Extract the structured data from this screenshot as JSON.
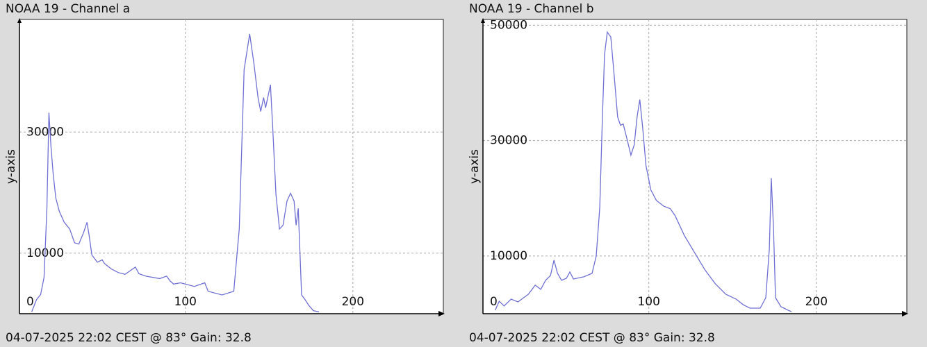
{
  "chart_data": [
    {
      "type": "line",
      "title": "NOAA 19 - Channel a",
      "ylabel": "y-axis",
      "footer": "04-07-2025 22:02 CEST @ 83° Gain: 32.8",
      "xlim": [
        1,
        254
      ],
      "ylim": [
        0,
        48600
      ],
      "xticks": [
        100,
        200
      ],
      "yticks": [
        0,
        10000,
        30000
      ],
      "grid": true,
      "x": [
        8.3,
        11.2,
        13.6,
        15.7,
        17.4,
        18.6,
        19.8,
        21.1,
        22.7,
        24.8,
        27.7,
        31,
        33.9,
        36.4,
        39.3,
        41.3,
        42.6,
        44.2,
        47.5,
        50.4,
        51.7,
        55.8,
        59.9,
        64,
        70.2,
        72.3,
        76.4,
        84.7,
        88.8,
        90.9,
        93,
        97.1,
        105.4,
        111.6,
        113.6,
        121.9,
        128.9,
        132.2,
        135.1,
        138.4,
        140.9,
        143.4,
        145,
        146.7,
        147.9,
        149.2,
        150.8,
        152.1,
        154.1,
        156.2,
        158.3,
        160.7,
        162.8,
        164.9,
        166.1,
        167.4,
        169.4,
        171.5,
        173.6,
        176.4,
        179.8
      ],
      "series": [
        {
          "color": "#7070d4",
          "values": [
            300,
            2340,
            3140,
            6000,
            17430,
            33200,
            27700,
            23100,
            19100,
            16900,
            15100,
            14000,
            11700,
            11500,
            13400,
            15100,
            12900,
            9700,
            8500,
            8900,
            8300,
            7400,
            6800,
            6500,
            7700,
            6600,
            6200,
            5800,
            6200,
            5400,
            4900,
            5100,
            4500,
            5100,
            3700,
            3100,
            3700,
            14000,
            40300,
            46200,
            41400,
            35700,
            33400,
            35700,
            34000,
            35700,
            37800,
            31100,
            19700,
            14000,
            14600,
            18600,
            19900,
            18600,
            14600,
            17400,
            3100,
            2300,
            1400,
            500,
            300
          ]
        }
      ]
    },
    {
      "type": "line",
      "title": "NOAA 19 - Channel b",
      "ylabel": "y-axis",
      "footer": "04-07-2025 22:02 CEST @ 83° Gain: 32.8",
      "xlim": [
        1,
        254
      ],
      "ylim": [
        0,
        51000
      ],
      "xticks": [
        100,
        200
      ],
      "yticks": [
        0,
        10000,
        30000,
        50000
      ],
      "grid": true,
      "x": [
        8.3,
        10.7,
        13.6,
        17.8,
        21.9,
        28.1,
        32.2,
        35.5,
        38.4,
        41.3,
        43.4,
        45.5,
        47.9,
        50.8,
        52.9,
        55,
        61.2,
        66.1,
        68.6,
        70.7,
        72.3,
        73.6,
        75.2,
        77.3,
        79.3,
        81.4,
        83.1,
        84.7,
        86.8,
        89.3,
        91.3,
        93,
        94.6,
        96.3,
        98.3,
        101.2,
        104.5,
        108.7,
        112.8,
        115.7,
        121.1,
        127.3,
        133.5,
        139.7,
        145.9,
        152.1,
        156.2,
        160.3,
        166.5,
        169.8,
        171.9,
        173.1,
        174.4,
        175.6,
        178.9,
        183.1,
        185.1
      ],
      "series": [
        {
          "color": "#7070d4",
          "values": [
            600,
            2170,
            1330,
            2530,
            2050,
            3370,
            4940,
            4220,
            5780,
            6630,
            9280,
            6990,
            5780,
            6140,
            7230,
            6020,
            6390,
            6990,
            10000,
            18430,
            34100,
            44940,
            48800,
            47950,
            41330,
            34100,
            32650,
            32890,
            30480,
            27470,
            29280,
            34100,
            37110,
            32290,
            25660,
            21450,
            19640,
            18670,
            18190,
            16990,
            13610,
            10600,
            7590,
            5180,
            3370,
            2530,
            1570,
            960,
            960,
            2770,
            11200,
            23490,
            14820,
            2770,
            1200,
            600,
            360
          ]
        }
      ]
    }
  ]
}
